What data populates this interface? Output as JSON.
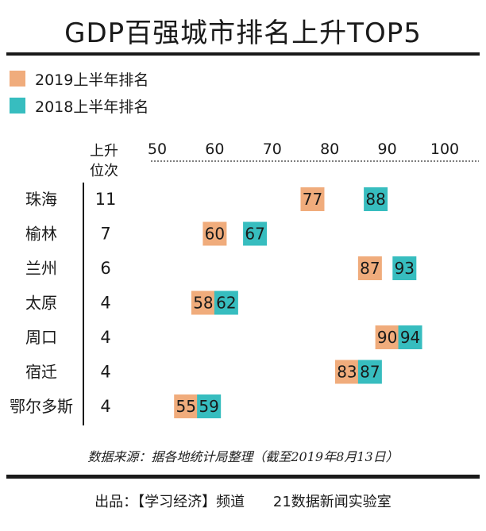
{
  "title": "GDP百强城市排名上升TOP5",
  "legend": [
    {
      "label": "2019上半年排名",
      "color": "#F0AC7C"
    },
    {
      "label": "2018上半年排名",
      "color": "#37BDBF"
    }
  ],
  "column_header": {
    "line1": "上升",
    "line2": "位次"
  },
  "source_text": "数据来源：据各地统计局整理（截至2019年8月13日）",
  "footer": {
    "publisher": "出品：【学习经济】频道",
    "lab": "21数据新闻实验室"
  },
  "chart_data": {
    "type": "scatter",
    "title": "GDP百强城市排名上升TOP5",
    "x_ticks": [
      50,
      60,
      70,
      80,
      90,
      100
    ],
    "xlim": [
      50,
      100
    ],
    "categories": [
      "珠海",
      "榆林",
      "兰州",
      "太原",
      "周口",
      "宿迁",
      "鄂尔多斯"
    ],
    "rise": [
      11,
      7,
      6,
      4,
      4,
      4,
      4
    ],
    "series": [
      {
        "name": "2019上半年排名",
        "color": "#F0AC7C",
        "values": [
          77,
          60,
          87,
          58,
          90,
          83,
          55
        ]
      },
      {
        "name": "2018上半年排名",
        "color": "#37BDBF",
        "values": [
          88,
          67,
          93,
          62,
          94,
          87,
          59
        ]
      }
    ]
  }
}
